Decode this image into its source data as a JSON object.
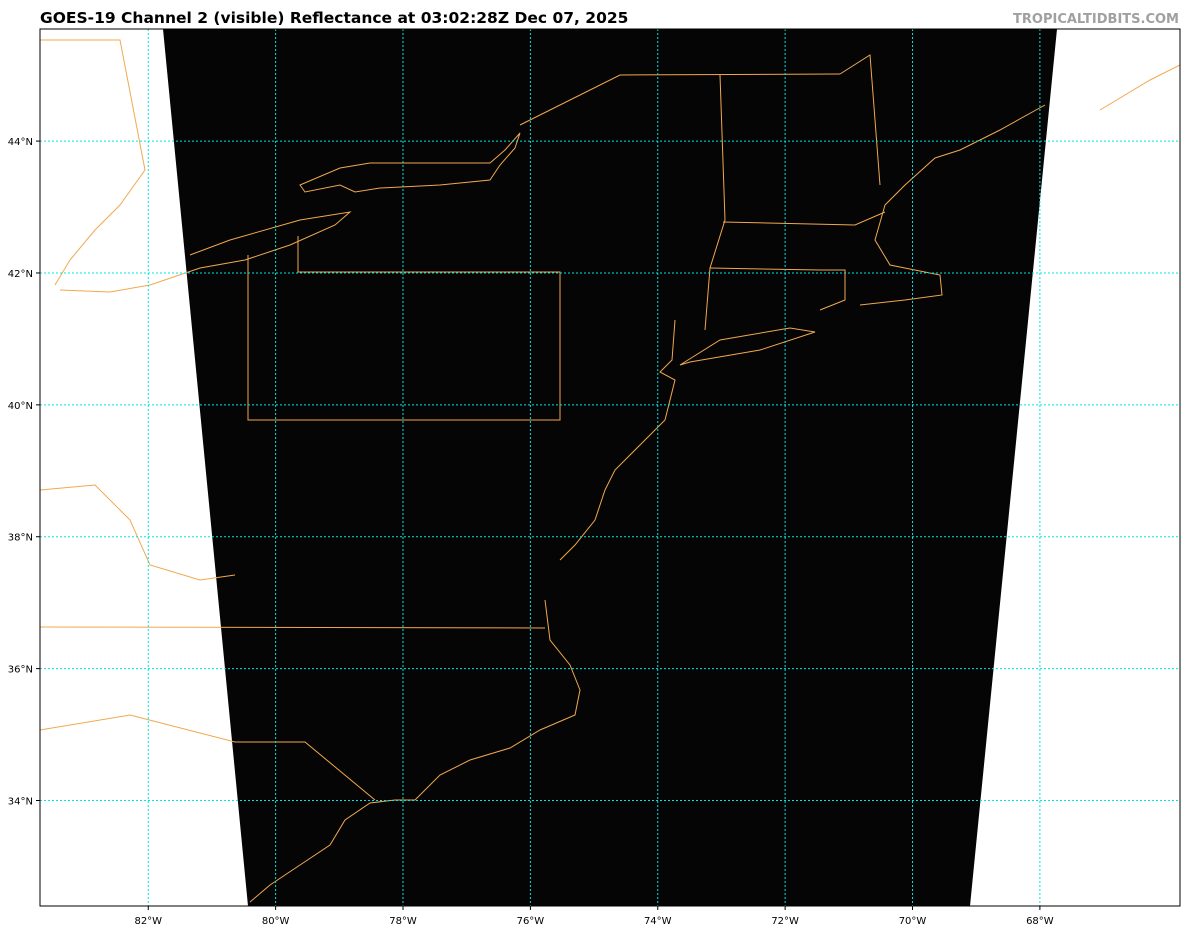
{
  "title": "GOES-19 Channel 2 (visible) Reflectance at 03:02:28Z Dec 07, 2025",
  "credit": "TROPICALTIDBITS.COM",
  "map": {
    "extent": {
      "lon": [
        -83.7,
        -65.8
      ],
      "lat": [
        32.4,
        45.7
      ]
    },
    "longitude_ticks": [
      {
        "value": -82,
        "label": "82°W"
      },
      {
        "value": -80,
        "label": "80°W"
      },
      {
        "value": -78,
        "label": "78°W"
      },
      {
        "value": -76,
        "label": "76°W"
      },
      {
        "value": -74,
        "label": "74°W"
      },
      {
        "value": -72,
        "label": "72°W"
      },
      {
        "value": -70,
        "label": "70°W"
      },
      {
        "value": -68,
        "label": "68°W"
      }
    ],
    "latitude_ticks": [
      {
        "value": 44,
        "label": "44°N"
      },
      {
        "value": 42,
        "label": "42°N"
      },
      {
        "value": 40,
        "label": "40°N"
      },
      {
        "value": 38,
        "label": "38°N"
      },
      {
        "value": 36,
        "label": "36°N"
      },
      {
        "value": 34,
        "label": "34°N"
      }
    ],
    "colors": {
      "imagery": "#050505",
      "coastline": "#f0a850",
      "gridlines": "#00e5e5",
      "background": "#ffffff"
    },
    "gridlines": true
  }
}
